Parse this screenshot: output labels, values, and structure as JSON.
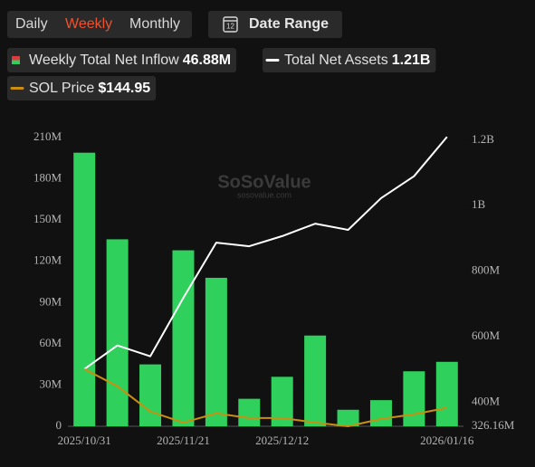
{
  "toolbar": {
    "tabs": [
      "Daily",
      "Weekly",
      "Monthly"
    ],
    "active_tab": 1,
    "date_range": "Date Range",
    "icon_day": "12"
  },
  "chart_data": {
    "type": "bar",
    "watermark": "SoSoValue",
    "watermark_sub": "sosovalue.com",
    "categories": [
      "2025/10/31",
      null,
      null,
      "2025/11/21",
      null,
      null,
      "2025/12/12",
      null,
      null,
      null,
      null,
      "2026/01/16"
    ],
    "series": [
      {
        "name": "Weekly Total Net Inflow",
        "latest": "46.88M",
        "type": "bar",
        "color": "#2fd15c",
        "icon_color": "#e0393e",
        "values": [
          199,
          136,
          45,
          128,
          108,
          20,
          36,
          66,
          12,
          19,
          40,
          46.88
        ]
      },
      {
        "name": "Total Net Assets",
        "latest": "1.21B",
        "type": "line",
        "axis": "y2",
        "color": "#ffffff",
        "values": [
          501,
          573,
          540,
          718,
          887,
          876,
          907,
          945,
          926,
          1023,
          1090,
          1210
        ]
      },
      {
        "name": "SOL Price",
        "latest": "$144.95",
        "type": "line",
        "axis": "y3",
        "color": "#c98f10",
        "values": [
          187,
          168.5,
          141,
          129,
          139,
          134,
          134,
          129,
          125,
          133,
          138,
          144.95
        ]
      }
    ],
    "ylim": [
      0,
      210
    ],
    "yticks": [
      0,
      {
        "value": 30,
        "label": "30M"
      },
      {
        "value": 60,
        "label": "60M"
      },
      {
        "value": 90,
        "label": "90M"
      },
      {
        "value": 120,
        "label": "120M"
      },
      {
        "value": 150,
        "label": "150M"
      },
      {
        "value": 180,
        "label": "180M"
      },
      {
        "value": 210,
        "label": "210M"
      }
    ],
    "y2lim": [
      326.16,
      1208
    ],
    "y2ticks": [
      {
        "value": 326.16,
        "label": "326.16M"
      },
      {
        "value": 400,
        "label": "400M"
      },
      {
        "value": 600,
        "label": "600M"
      },
      {
        "value": 800,
        "label": "800M"
      },
      {
        "value": 1000,
        "label": "1B"
      },
      {
        "value": 1200,
        "label": "1.2B"
      }
    ],
    "y3lim": [
      125,
      438
    ],
    "grid": false
  }
}
